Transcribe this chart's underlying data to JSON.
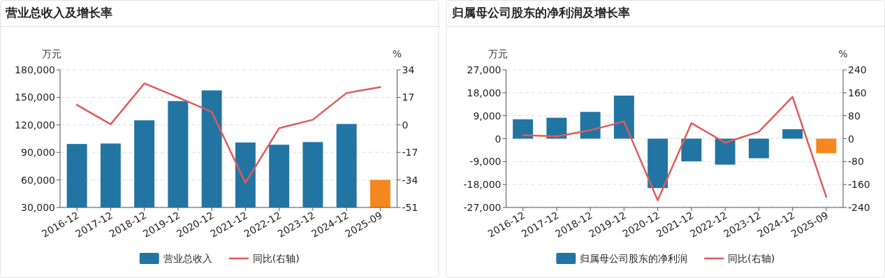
{
  "chart_data": [
    {
      "type": "bar",
      "title": "营业总收入及增长率",
      "ylabel": "万元",
      "y2label": "%",
      "categories": [
        "2016-12",
        "2017-12",
        "2018-12",
        "2019-12",
        "2020-12",
        "2021-12",
        "2022-12",
        "2023-12",
        "2024-12",
        "2025-09"
      ],
      "series": [
        {
          "name": "营业总收入",
          "color": "#2275a3",
          "colors": [
            "#2275a3",
            "#2275a3",
            "#2275a3",
            "#2275a3",
            "#2275a3",
            "#2275a3",
            "#2275a3",
            "#2275a3",
            "#2275a3",
            "#f5871f"
          ],
          "values": [
            99200,
            99700,
            125000,
            146000,
            157600,
            100800,
            98400,
            101300,
            121000,
            60000
          ]
        },
        {
          "name": "同比(右轴)",
          "type": "line",
          "axis": "y2",
          "color": "#e05a5a",
          "values": [
            12.4,
            0.4,
            25.6,
            17,
            8.1,
            -35.8,
            -2,
            3.2,
            19.7,
            23.3
          ]
        }
      ],
      "ylim": [
        30000,
        180000
      ],
      "yticks": [
        {
          "value": 30000,
          "label": "30,000"
        },
        {
          "value": 60000,
          "label": "60,000"
        },
        {
          "value": 90000,
          "label": "90,000"
        },
        {
          "value": 120000,
          "label": "120,000"
        },
        {
          "value": 150000,
          "label": "150,000"
        },
        {
          "value": 180000,
          "label": "180,000"
        }
      ],
      "y2lim": [
        -51,
        34
      ],
      "y2ticks": [
        -51,
        -34,
        -17,
        0,
        17,
        34
      ],
      "grid": "y",
      "legend": "bottom"
    },
    {
      "type": "bar",
      "title": "归属母公司股东的净利润及增长率",
      "ylabel": "万元",
      "y2label": "%",
      "categories": [
        "2016-12",
        "2017-12",
        "2018-12",
        "2019-12",
        "2020-12",
        "2021-12",
        "2022-12",
        "2023-12",
        "2024-12",
        "2025-09"
      ],
      "series": [
        {
          "name": "归属母公司股东的净利润",
          "color": "#2275a3",
          "colors": [
            "#2275a3",
            "#2275a3",
            "#2275a3",
            "#2275a3",
            "#2275a3",
            "#2275a3",
            "#2275a3",
            "#2275a3",
            "#2275a3",
            "#f5871f"
          ],
          "values": [
            7600,
            8200,
            10500,
            16900,
            -19400,
            -8900,
            -10200,
            -7700,
            3700,
            -5700
          ]
        },
        {
          "name": "同比(右轴)",
          "type": "line",
          "axis": "y2",
          "color": "#e05a5a",
          "values": [
            12,
            8,
            29,
            60,
            -215,
            54,
            -14,
            24,
            146,
            -203
          ]
        }
      ],
      "ylim": [
        -27000,
        27000
      ],
      "yticks": [
        {
          "value": -27000,
          "label": "-27,000"
        },
        {
          "value": -18000,
          "label": "-18,000"
        },
        {
          "value": -9000,
          "label": "-9,000"
        },
        0,
        {
          "value": 9000,
          "label": "9,000"
        },
        {
          "value": 18000,
          "label": "18,000"
        },
        {
          "value": 27000,
          "label": "27,000"
        }
      ],
      "y2lim": [
        -240,
        240
      ],
      "y2ticks": [
        -240,
        -160,
        -80,
        0,
        80,
        160,
        240
      ],
      "grid": "y",
      "legend": "bottom"
    }
  ]
}
